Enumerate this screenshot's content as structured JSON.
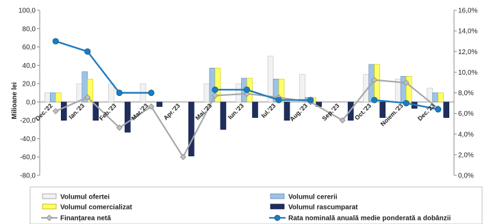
{
  "chart_data": {
    "type": "bar",
    "categories": [
      "Dec.'22",
      "Ian.'23",
      "Feb.'23",
      "Mar.'23",
      "Apr.'23",
      "Mai.'23",
      "Iun.'23",
      "Iul.'23",
      "Aug.'23",
      "Sep.'23",
      "Oct.'23",
      "Noiem.'23",
      "Dec.'23"
    ],
    "ylabel": "Milioane lei",
    "ylim": [
      -80,
      100
    ],
    "y_ticks": [
      "100,0",
      "80,0",
      "60,0",
      "40,0",
      "20,0",
      "0,0",
      "-20,0",
      "-40,0",
      "-60,0",
      "-80,0"
    ],
    "y2lim": [
      0,
      16
    ],
    "y2_ticks": [
      "16,0%",
      "14,0%",
      "12,0%",
      "10,0%",
      "8,0%",
      "6,0%",
      "4,0%",
      "2,0%",
      "0,0%"
    ],
    "legend_placement": "bottom",
    "grid": false,
    "series": [
      {
        "name": "Volumul ofertei",
        "kind": "bar",
        "axis": "left",
        "color": "#f2f2f2",
        "values": [
          10,
          20,
          20,
          20,
          null,
          20,
          20,
          50,
          30,
          null,
          30,
          25,
          15
        ]
      },
      {
        "name": "Volumul cererii",
        "kind": "bar",
        "axis": "left",
        "color": "#9dc3e6",
        "values": [
          10,
          33,
          null,
          null,
          null,
          37,
          26,
          25,
          5,
          null,
          41,
          28,
          10
        ]
      },
      {
        "name": "Volumul comercializat",
        "kind": "bar",
        "axis": "left",
        "color": "#ffff66",
        "values": [
          10,
          25,
          null,
          null,
          null,
          37,
          26,
          25,
          5,
          null,
          41,
          28,
          10
        ]
      },
      {
        "name": "Volumul rascumparat",
        "kind": "bar",
        "axis": "left",
        "color": "#1f2e5e",
        "values": [
          -20,
          -20,
          -33,
          -5,
          -59,
          -30,
          -17,
          -20,
          -5,
          -20,
          -17,
          -7,
          -17
        ]
      },
      {
        "name": "Finanțarea netă",
        "kind": "line",
        "axis": "left",
        "color": "#a6a6a6",
        "values": [
          -10,
          5,
          -28,
          -5,
          -60,
          7,
          9,
          5,
          0,
          -20,
          24,
          21,
          -7
        ]
      },
      {
        "name": "Rata nominală anuală medie ponderată a dobânzii",
        "kind": "line",
        "axis": "right",
        "color": "#1f7bbf",
        "values": [
          13.0,
          12.0,
          8.0,
          8.0,
          null,
          8.3,
          8.3,
          7.3,
          7.3,
          null,
          7.3,
          7.0,
          6.4
        ]
      }
    ]
  }
}
